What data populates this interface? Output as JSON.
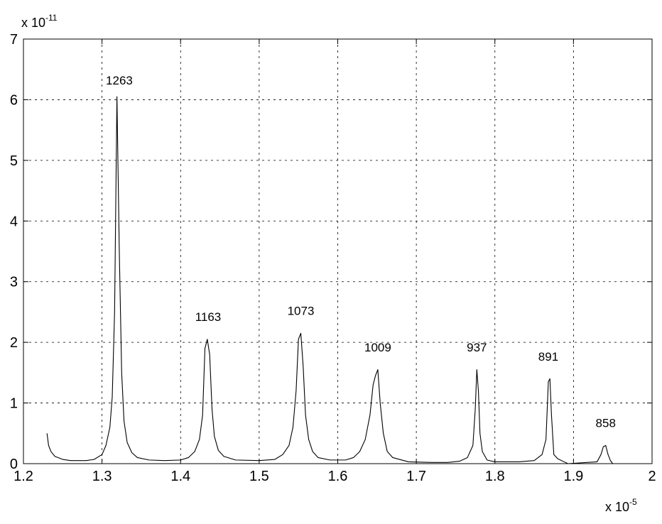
{
  "chart_data": {
    "type": "line",
    "title": "",
    "xlabel": "",
    "ylabel": "",
    "x_multiplier": {
      "base": "x 10",
      "exponent": "-5"
    },
    "y_multiplier": {
      "base": "x 10",
      "exponent": "-11"
    },
    "xlim": [
      1.2,
      2.0
    ],
    "ylim": [
      0,
      7
    ],
    "xticks": [
      "1.2",
      "1.3",
      "1.4",
      "1.5",
      "1.6",
      "1.7",
      "1.8",
      "1.9",
      "2"
    ],
    "yticks": [
      "0",
      "1",
      "2",
      "3",
      "4",
      "5",
      "6",
      "7"
    ],
    "grid": true,
    "series": [
      {
        "x": [
          1.23,
          1.232,
          1.235,
          1.24,
          1.25,
          1.26,
          1.28,
          1.29,
          1.3,
          1.305,
          1.31,
          1.313,
          1.316,
          1.319,
          1.322,
          1.325,
          1.328,
          1.332,
          1.338,
          1.345,
          1.36,
          1.38,
          1.4,
          1.41,
          1.418,
          1.424,
          1.428,
          1.431,
          1.434,
          1.437,
          1.44,
          1.443,
          1.448,
          1.455,
          1.47,
          1.5,
          1.52,
          1.53,
          1.538,
          1.543,
          1.547,
          1.55,
          1.553,
          1.556,
          1.559,
          1.563,
          1.568,
          1.575,
          1.59,
          1.61,
          1.62,
          1.628,
          1.635,
          1.641,
          1.645,
          1.648,
          1.651,
          1.654,
          1.658,
          1.663,
          1.67,
          1.69,
          1.72,
          1.74,
          1.755,
          1.765,
          1.772,
          1.775,
          1.777,
          1.779,
          1.781,
          1.784,
          1.79,
          1.8,
          1.83,
          1.85,
          1.86,
          1.865,
          1.868,
          1.87,
          1.872,
          1.875,
          1.88,
          1.888,
          1.893,
          1.93,
          1.935,
          1.938,
          1.941,
          1.944,
          1.947,
          1.95
        ],
        "y": [
          0.5,
          0.3,
          0.2,
          0.12,
          0.07,
          0.05,
          0.05,
          0.07,
          0.15,
          0.3,
          0.6,
          1.1,
          2.5,
          6.05,
          3.5,
          1.5,
          0.7,
          0.35,
          0.18,
          0.1,
          0.06,
          0.05,
          0.06,
          0.1,
          0.2,
          0.4,
          0.8,
          1.9,
          2.05,
          1.8,
          0.9,
          0.45,
          0.22,
          0.12,
          0.06,
          0.05,
          0.07,
          0.15,
          0.3,
          0.6,
          1.2,
          2.05,
          2.15,
          1.6,
          0.8,
          0.4,
          0.2,
          0.1,
          0.06,
          0.06,
          0.1,
          0.2,
          0.4,
          0.8,
          1.3,
          1.45,
          1.55,
          1.0,
          0.5,
          0.2,
          0.1,
          0.03,
          0.02,
          0.02,
          0.04,
          0.1,
          0.3,
          0.9,
          1.55,
          1.2,
          0.5,
          0.2,
          0.06,
          0.03,
          0.03,
          0.05,
          0.15,
          0.4,
          1.35,
          1.4,
          0.8,
          0.15,
          0.08,
          0.03,
          0.0,
          0.03,
          0.15,
          0.28,
          0.3,
          0.15,
          0.05,
          0.0
        ]
      }
    ],
    "annotations": [
      {
        "text": "1263",
        "x": 1.322,
        "y": 6.25
      },
      {
        "text": "1163",
        "x": 1.435,
        "y": 2.35
      },
      {
        "text": "1073",
        "x": 1.553,
        "y": 2.45
      },
      {
        "text": "1009",
        "x": 1.651,
        "y": 1.85
      },
      {
        "text": "937",
        "x": 1.777,
        "y": 1.85
      },
      {
        "text": "891",
        "x": 1.868,
        "y": 1.7
      },
      {
        "text": "858",
        "x": 1.941,
        "y": 0.6
      }
    ],
    "colors": {
      "line": "#000000",
      "grid": "#000000",
      "axes": "#000000"
    }
  }
}
